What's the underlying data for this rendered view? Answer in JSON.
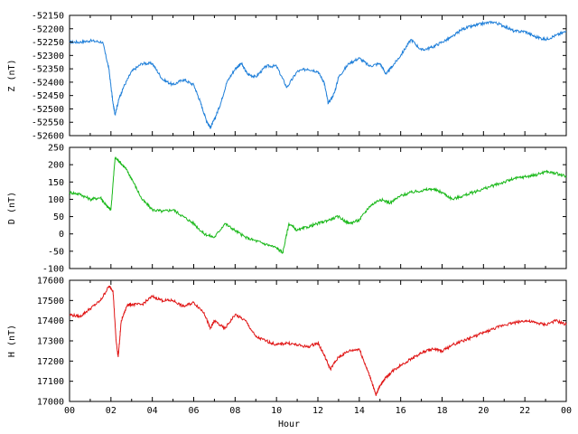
{
  "chart_data": [
    {
      "type": "line",
      "ylabel": "Z (nT)",
      "color": "#1f7fd9",
      "ylim": [
        -52600,
        -52150
      ],
      "yticks": [
        -52150,
        -52200,
        -52250,
        -52300,
        -52350,
        -52400,
        -52450,
        -52500,
        -52550,
        -52600
      ],
      "xlim": [
        0,
        24
      ],
      "x": [
        0,
        0.5,
        1,
        1.6,
        1.9,
        2.1,
        2.2,
        2.4,
        2.6,
        3,
        3.5,
        4,
        4.5,
        5,
        5.5,
        6,
        6.3,
        6.6,
        6.8,
        7,
        7.3,
        7.6,
        8,
        8.3,
        8.6,
        9,
        9.5,
        10,
        10.5,
        11,
        11.5,
        12,
        12.3,
        12.5,
        12.8,
        13,
        13.5,
        14,
        14.5,
        15,
        15.3,
        15.6,
        16,
        16.5,
        17,
        17.5,
        18,
        18.5,
        19,
        19.5,
        20,
        20.5,
        21,
        21.5,
        22,
        22.5,
        23,
        23.5,
        24
      ],
      "y": [
        -52250,
        -52250,
        -52245,
        -52250,
        -52350,
        -52480,
        -52520,
        -52460,
        -52420,
        -52360,
        -52330,
        -52330,
        -52390,
        -52410,
        -52390,
        -52410,
        -52470,
        -52540,
        -52570,
        -52540,
        -52480,
        -52400,
        -52350,
        -52330,
        -52370,
        -52380,
        -52340,
        -52340,
        -52420,
        -52360,
        -52350,
        -52360,
        -52400,
        -52480,
        -52440,
        -52380,
        -52330,
        -52310,
        -52340,
        -52330,
        -52370,
        -52340,
        -52300,
        -52240,
        -52280,
        -52270,
        -52250,
        -52230,
        -52200,
        -52190,
        -52180,
        -52175,
        -52190,
        -52210,
        -52210,
        -52230,
        -52240,
        -52225,
        -52210
      ],
      "xticks": [
        "00",
        "02",
        "04",
        "06",
        "08",
        "10",
        "12",
        "14",
        "16",
        "18",
        "20",
        "22",
        "00"
      ]
    },
    {
      "type": "line",
      "ylabel": "D (nT)",
      "color": "#19b819",
      "ylim": [
        -100,
        250
      ],
      "yticks": [
        250,
        200,
        150,
        100,
        50,
        0,
        -50,
        -100
      ],
      "xlim": [
        0,
        24
      ],
      "x": [
        0,
        0.5,
        1,
        1.5,
        1.8,
        2,
        2.2,
        2.4,
        2.7,
        3,
        3.5,
        4,
        4.5,
        5,
        5.5,
        6,
        6.5,
        7,
        7.5,
        8,
        8.5,
        9,
        9.5,
        10,
        10.3,
        10.6,
        11,
        11.5,
        12,
        12.5,
        13,
        13.5,
        14,
        14.5,
        15,
        15.5,
        16,
        16.5,
        17,
        17.5,
        18,
        18.5,
        19,
        19.5,
        20,
        20.5,
        21,
        21.5,
        22,
        22.5,
        23,
        23.5,
        24
      ],
      "y": [
        120,
        115,
        100,
        105,
        80,
        70,
        220,
        210,
        190,
        160,
        100,
        70,
        65,
        70,
        50,
        30,
        0,
        -10,
        30,
        10,
        -10,
        -20,
        -30,
        -40,
        -55,
        30,
        10,
        20,
        30,
        40,
        50,
        30,
        40,
        80,
        100,
        90,
        110,
        120,
        125,
        130,
        120,
        100,
        110,
        120,
        130,
        140,
        150,
        160,
        165,
        170,
        180,
        175,
        165
      ],
      "xticks": [
        "00",
        "02",
        "04",
        "06",
        "08",
        "10",
        "12",
        "14",
        "16",
        "18",
        "20",
        "22",
        "00"
      ]
    },
    {
      "type": "line",
      "ylabel": "H (nT)",
      "xlabel": "Hour",
      "color": "#e01414",
      "ylim": [
        17000,
        17600
      ],
      "yticks": [
        17600,
        17500,
        17400,
        17300,
        17200,
        17100,
        17000
      ],
      "xlim": [
        0,
        24
      ],
      "x": [
        0,
        0.5,
        1,
        1.5,
        1.9,
        2.1,
        2.25,
        2.35,
        2.5,
        2.8,
        3,
        3.5,
        4,
        4.5,
        5,
        5.5,
        6,
        6.5,
        6.8,
        7,
        7.5,
        8,
        8.5,
        9,
        9.5,
        10,
        10.5,
        11,
        11.5,
        12,
        12.3,
        12.6,
        13,
        13.5,
        14,
        14.3,
        14.6,
        14.8,
        15,
        15.3,
        15.6,
        16,
        16.5,
        17,
        17.5,
        18,
        18.5,
        19,
        19.5,
        20,
        20.5,
        21,
        21.5,
        22,
        22.5,
        23,
        23.5,
        24
      ],
      "y": [
        17430,
        17420,
        17460,
        17500,
        17570,
        17550,
        17300,
        17220,
        17400,
        17480,
        17480,
        17480,
        17520,
        17500,
        17500,
        17470,
        17490,
        17440,
        17360,
        17400,
        17360,
        17430,
        17400,
        17320,
        17300,
        17280,
        17290,
        17280,
        17270,
        17290,
        17230,
        17160,
        17220,
        17250,
        17260,
        17180,
        17100,
        17030,
        17080,
        17120,
        17150,
        17180,
        17210,
        17240,
        17260,
        17250,
        17280,
        17300,
        17320,
        17340,
        17360,
        17380,
        17390,
        17400,
        17390,
        17380,
        17400,
        17380
      ],
      "xticks": [
        "00",
        "02",
        "04",
        "06",
        "08",
        "10",
        "12",
        "14",
        "16",
        "18",
        "20",
        "22",
        "00"
      ]
    }
  ]
}
